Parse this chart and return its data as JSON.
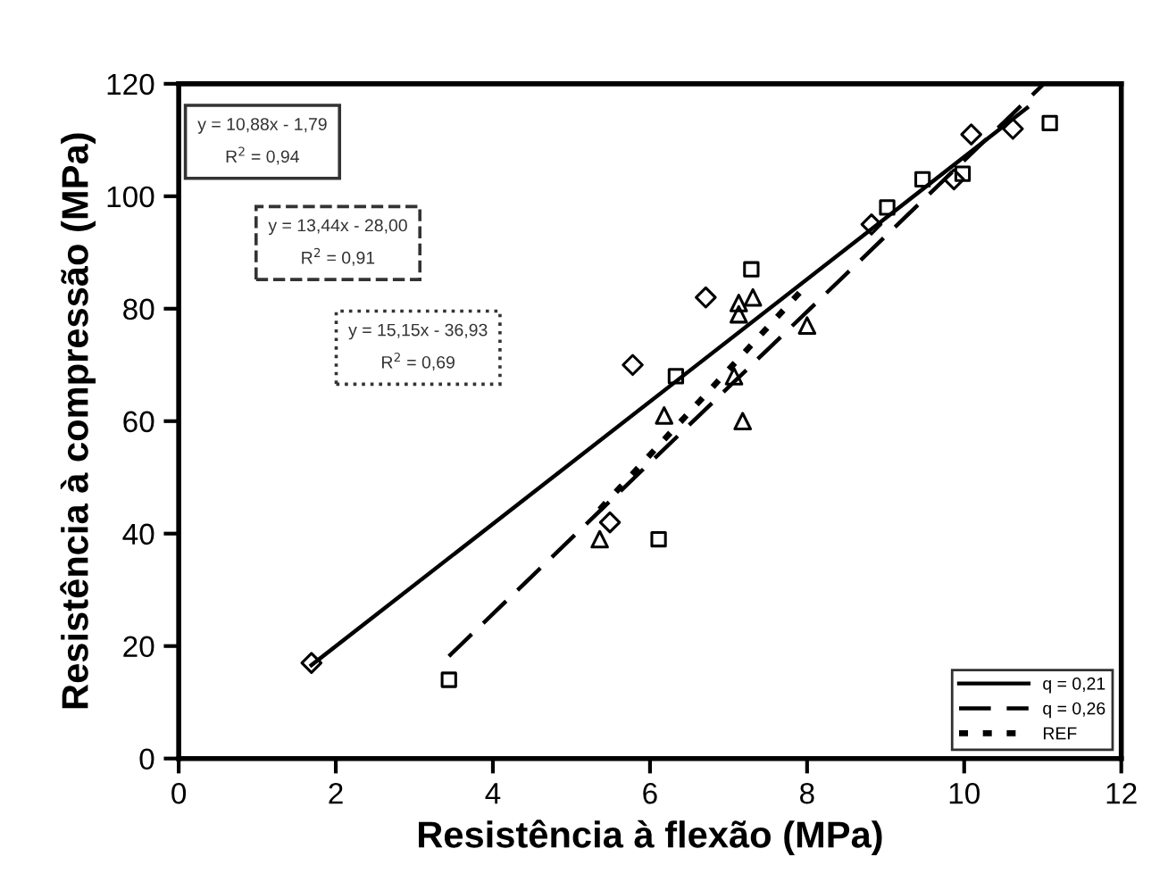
{
  "chart_data": {
    "type": "scatter",
    "xlabel": "Resistência à flexão (MPa)",
    "ylabel": "Resistência à compressão (MPa)",
    "xlim": [
      0,
      12
    ],
    "ylim": [
      0,
      120
    ],
    "xticks": [
      0,
      2,
      4,
      6,
      8,
      10,
      12
    ],
    "yticks": [
      0,
      20,
      40,
      60,
      80,
      100,
      120
    ],
    "grid": false,
    "legend": "bottom right",
    "series": [
      {
        "marker": "diamond",
        "color": "#000000",
        "x": [
          1.69,
          5.49,
          5.78,
          6.71,
          8.82,
          9.87,
          10.09,
          10.62
        ],
        "values": [
          17,
          42,
          70,
          82,
          95,
          103,
          111,
          112
        ]
      },
      {
        "marker": "square",
        "color": "#000000",
        "x": [
          3.44,
          6.11,
          6.33,
          7.29,
          9.02,
          9.47,
          9.98,
          11.09
        ],
        "values": [
          14,
          39,
          68,
          87,
          98,
          103,
          104,
          113
        ]
      },
      {
        "marker": "triangle",
        "color": "#000000",
        "x": [
          5.36,
          6.18,
          7.07,
          7.18,
          7.13,
          7.13,
          7.31,
          8.0
        ],
        "values": [
          39,
          61,
          68,
          60,
          79,
          81,
          82,
          77
        ]
      },
      {
        "type": "line",
        "name": "q = 0,21",
        "line_style": "solid",
        "color": "#000000",
        "x": [
          1.69,
          10.8
        ],
        "values": [
          16.6,
          115.7
        ]
      },
      {
        "type": "line",
        "name": "q = 0,26",
        "line_style": "dashed",
        "color": "#000000",
        "x": [
          3.44,
          11.0
        ],
        "values": [
          18.2,
          119.8
        ]
      },
      {
        "type": "line",
        "name": "REF",
        "line_style": "dotted",
        "color": "#000000",
        "x": [
          5.36,
          8.0
        ],
        "values": [
          44.3,
          84.3
        ]
      }
    ],
    "annotations": [
      "y = 10,88x - 1,79\nR$^{2}$ = 0,94",
      "y = 13,44x - 28,00\nR$^{2}$ = 0,91",
      "y = 15,15x - 36,93\nR$^{2}$ = 0,69"
    ]
  }
}
